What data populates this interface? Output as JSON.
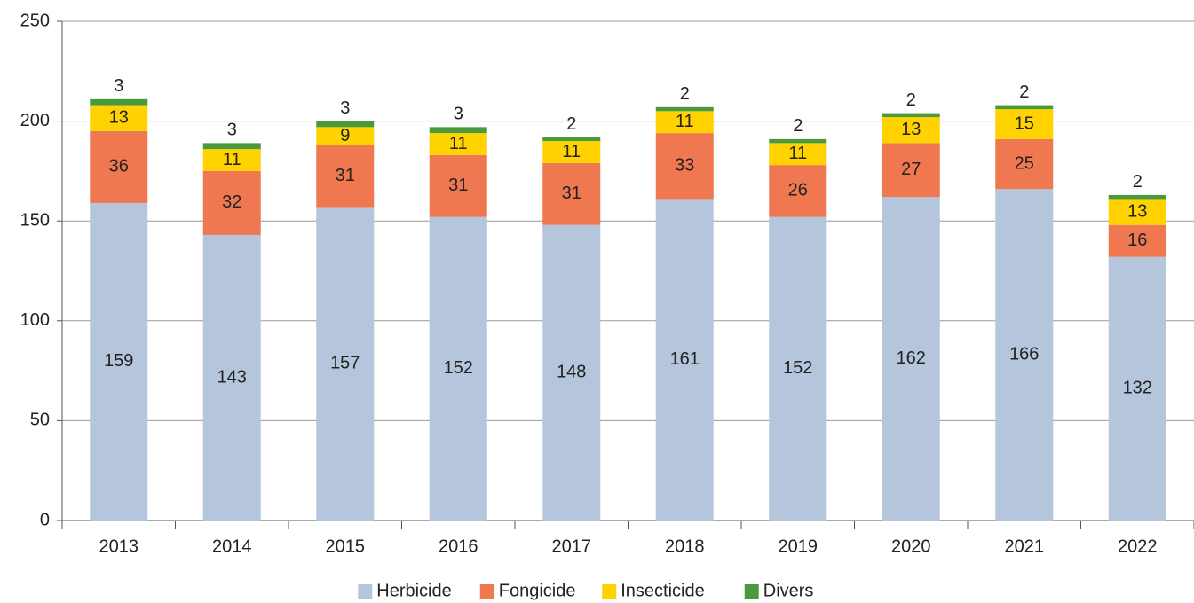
{
  "chart_data": {
    "type": "stacked_bar",
    "categories": [
      "2013",
      "2014",
      "2015",
      "2016",
      "2017",
      "2018",
      "2019",
      "2020",
      "2021",
      "2022"
    ],
    "series": [
      {
        "name": "Herbicide",
        "color": "#b4c5dc",
        "values": [
          159,
          143,
          157,
          152,
          148,
          161,
          152,
          162,
          166,
          132
        ]
      },
      {
        "name": "Fongicide",
        "color": "#f07850",
        "values": [
          36,
          32,
          31,
          31,
          31,
          33,
          26,
          27,
          25,
          16
        ]
      },
      {
        "name": "Insecticide",
        "color": "#ffd200",
        "values": [
          13,
          11,
          9,
          11,
          11,
          11,
          11,
          13,
          15,
          13
        ]
      },
      {
        "name": "Divers",
        "color": "#4a9a3c",
        "values": [
          3,
          3,
          3,
          3,
          2,
          2,
          2,
          2,
          2,
          2
        ]
      }
    ],
    "ylim": [
      0,
      250
    ],
    "yticks": [
      0,
      50,
      100,
      150,
      200,
      250
    ],
    "grid": true,
    "legend": "bottom"
  }
}
